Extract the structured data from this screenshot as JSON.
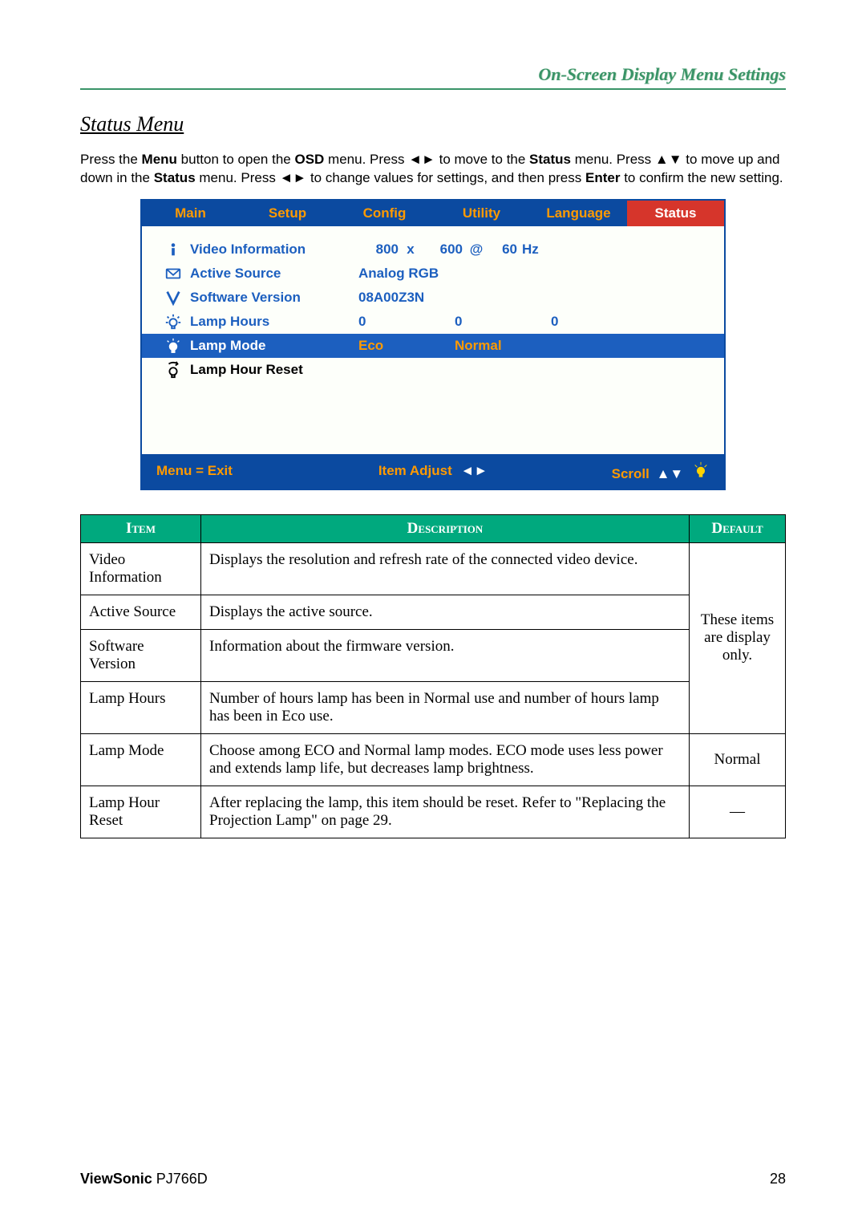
{
  "header_title": "On-Screen Display Menu Settings",
  "section_title": "Status Menu",
  "intro": {
    "line1_pre": "Press the ",
    "menu_b": "Menu",
    "line1_mid": " button to open the ",
    "osd_b": "OSD",
    "line1_mid2": " menu. Press ",
    "lr1": "◄►",
    "line1_mid3": " to move to the ",
    "status_b": "Status",
    "line1_mid4": " menu. Press ",
    "ud1": "▲▼",
    "line1_end": " to move up and down in the ",
    "status_b2": "Status",
    "line2_mid": " menu. Press ",
    "lr2": "◄►",
    "line2_mid2": " to change values for settings, and then press ",
    "enter_b": "Enter",
    "line2_end": " to confirm the new setting."
  },
  "osd": {
    "tabs": [
      "Main",
      "Setup",
      "Config",
      "Utility",
      "Language",
      "Status"
    ],
    "active_tab_index": 5,
    "rows": [
      {
        "icon": "info",
        "label": "Video Information",
        "v1": "800",
        "vmid": "x",
        "v2": "600",
        "vat": "@",
        "v3": "60",
        "vunit": "Hz"
      },
      {
        "icon": "source",
        "label": "Active Source",
        "v1": "Analog RGB"
      },
      {
        "icon": "version",
        "label": "Software Version",
        "v1": "08A00Z3N"
      },
      {
        "icon": "lamp",
        "label": "Lamp Hours",
        "v1": "0",
        "v2": "0",
        "v3": "0"
      },
      {
        "icon": "lamp-sel",
        "label": "Lamp Mode",
        "v1": "Eco",
        "v2": "Normal",
        "selected": true
      },
      {
        "icon": "reset",
        "label": "Lamp Hour Reset",
        "bold_black": true
      }
    ],
    "footer": {
      "exit": "Menu = Exit",
      "adjust": "Item Adjust",
      "adjust_arrows": "◄►",
      "scroll": "Scroll",
      "scroll_arrows": "▲▼"
    }
  },
  "table": {
    "headers": {
      "item": "Item",
      "desc": "Description",
      "def": "Default"
    },
    "rows": [
      {
        "item": "Video Information",
        "desc": "Displays the resolution and refresh rate of the connected video device."
      },
      {
        "item": "Active Source",
        "desc": "Displays the active source."
      },
      {
        "item": "Software Version",
        "desc": "Information about the firmware version."
      },
      {
        "item": "Lamp Hours",
        "desc": "Number of hours lamp has been in Normal use and number of hours lamp has been in Eco use."
      }
    ],
    "group_default": "These items are display only.",
    "rows2": [
      {
        "item": "Lamp Mode",
        "desc": "Choose among ECO and Normal lamp modes. ECO mode uses less power and extends lamp life, but decreases lamp brightness.",
        "def": "Normal"
      },
      {
        "item": "Lamp Hour Reset",
        "desc": "After replacing the lamp, this item should be reset. Refer to \"Replacing the Projection Lamp\" on page 29.",
        "def": "—"
      }
    ]
  },
  "footer": {
    "brand_bold": "ViewSonic",
    "brand_model": "PJ766D",
    "page": "28"
  },
  "colors": {
    "header_green": "#3a9468",
    "osd_blue": "#0b4aa0",
    "osd_highlight": "#1c5fbf",
    "osd_orange": "#ff9a00",
    "tab_red": "#d6352b",
    "th_green": "#00a97e"
  }
}
